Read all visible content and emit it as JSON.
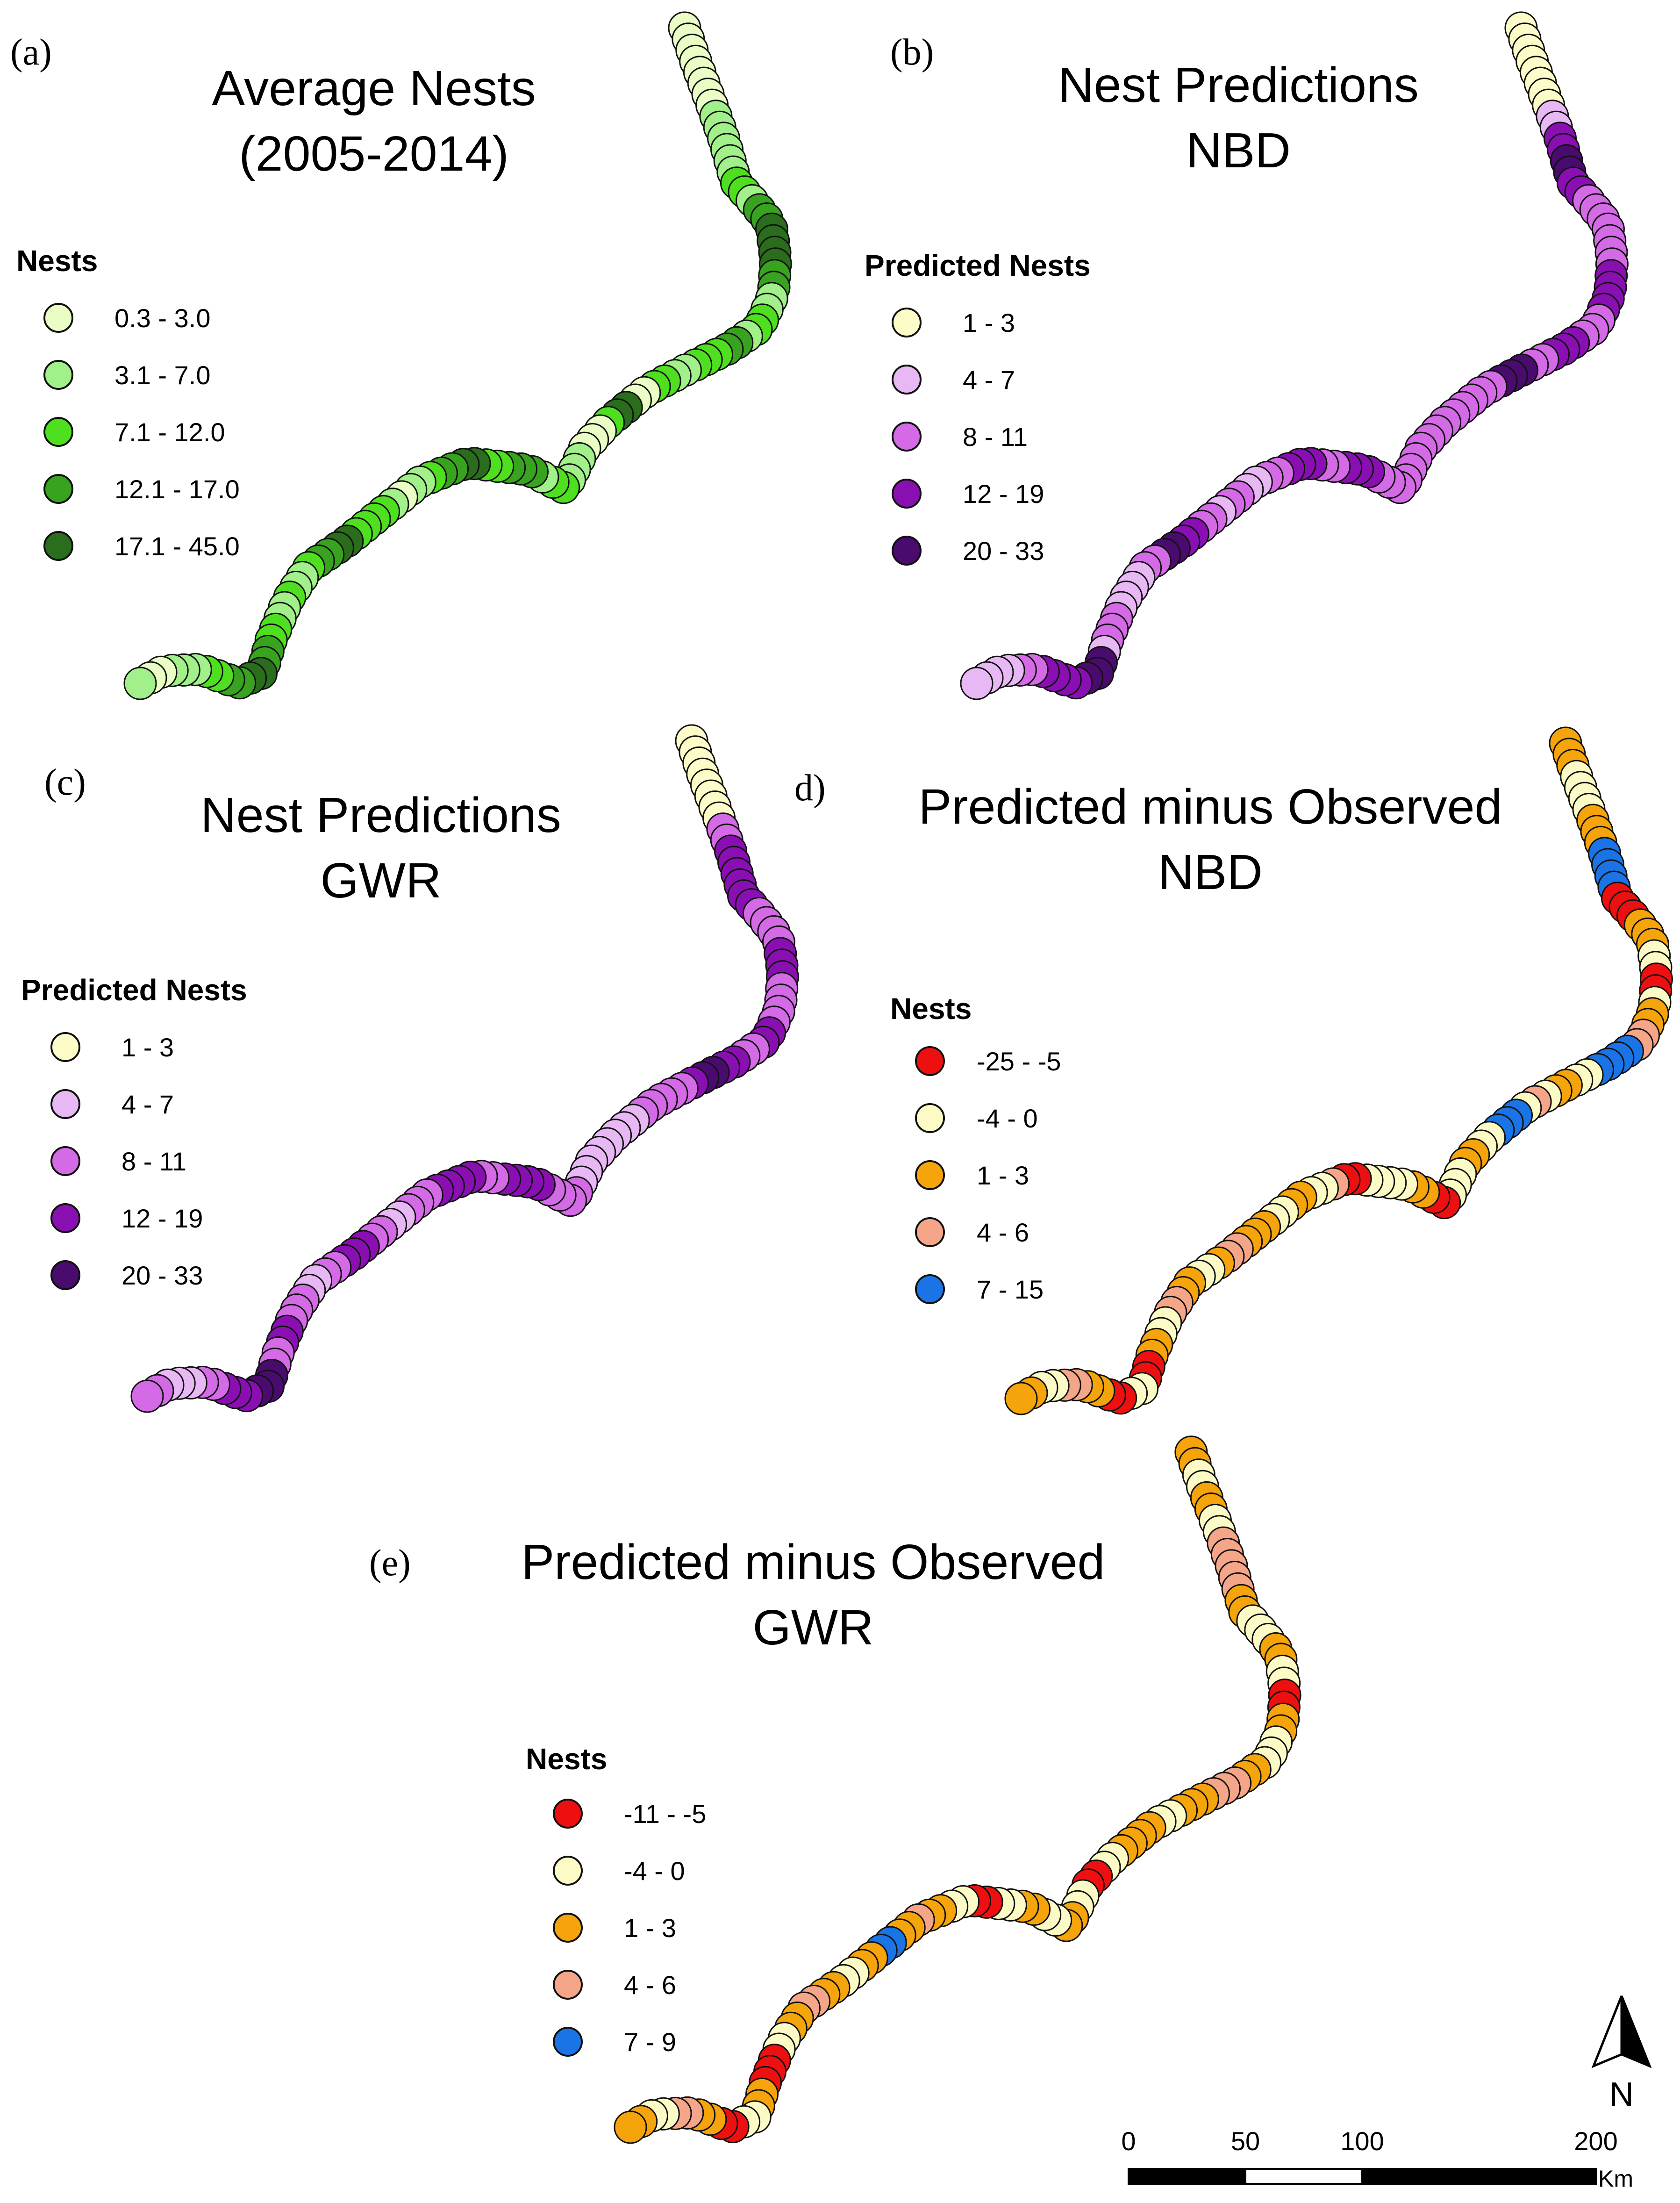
{
  "colors": {
    "marker_stroke": "#111111",
    "green_ramp": [
      "#eafdc5",
      "#a2f08a",
      "#4ee01f",
      "#38a31f",
      "#2a6d1c"
    ],
    "purple_ramp": [
      "#fdfbc7",
      "#e8b8f4",
      "#d56ae6",
      "#8a0fb3",
      "#4a0b6e"
    ],
    "diff_ramp": [
      "#ee1010",
      "#fdfbc5",
      "#f5a40c",
      "#f5a689",
      "#1a74e6"
    ]
  },
  "panels": [
    {
      "id": "a",
      "letter": "(a)",
      "title_line1": "Average Nests",
      "title_line2": "(2005-2014)",
      "legend_title": "Nests",
      "ramp": "green_ramp",
      "legend": [
        "0.3 - 3.0",
        "3.1 - 7.0",
        "7.1 - 12.0",
        "12.1 - 17.0",
        "17.1 - 45.0"
      ],
      "site_classes": [
        0,
        0,
        0,
        0,
        0,
        0,
        0,
        0,
        1,
        1,
        1,
        1,
        1,
        1,
        2,
        2,
        1,
        3,
        3,
        4,
        4,
        4,
        4,
        3,
        3,
        1,
        1,
        2,
        2,
        1,
        3,
        3,
        2,
        2,
        2,
        1,
        1,
        2,
        2,
        0,
        0,
        4,
        4,
        2,
        0,
        0,
        0,
        1,
        1,
        1,
        2,
        2,
        1,
        3,
        3,
        3,
        2,
        2,
        4,
        4,
        3,
        3,
        2,
        1,
        1,
        0,
        1,
        2,
        2,
        2,
        2,
        4,
        4,
        3,
        3,
        2,
        1,
        1,
        2,
        1,
        1,
        2,
        2,
        3,
        3,
        4,
        4,
        3,
        3,
        2,
        2,
        1,
        1,
        1,
        0,
        0,
        1
      ]
    },
    {
      "id": "b",
      "letter": "(b)",
      "title_line1": "Nest Predictions",
      "title_line2": "NBD",
      "legend_title": "Predicted Nests",
      "ramp": "purple_ramp",
      "legend": [
        "1 - 3",
        "4 - 7",
        "8 - 11",
        "12 - 19",
        "20 - 33"
      ],
      "site_classes": [
        0,
        0,
        0,
        0,
        0,
        0,
        0,
        0,
        1,
        1,
        3,
        3,
        4,
        4,
        3,
        3,
        2,
        2,
        2,
        2,
        2,
        2,
        2,
        3,
        3,
        3,
        3,
        2,
        2,
        2,
        3,
        3,
        3,
        2,
        2,
        4,
        4,
        4,
        2,
        2,
        2,
        2,
        2,
        2,
        2,
        2,
        2,
        2,
        2,
        2,
        2,
        2,
        2,
        3,
        3,
        3,
        2,
        2,
        3,
        3,
        3,
        2,
        2,
        1,
        1,
        2,
        2,
        1,
        2,
        2,
        3,
        3,
        4,
        4,
        2,
        2,
        1,
        1,
        1,
        1,
        2,
        2,
        2,
        1,
        4,
        4,
        4,
        3,
        3,
        3,
        3,
        2,
        2,
        1,
        1,
        1,
        1
      ]
    },
    {
      "id": "c",
      "letter": "(c)",
      "title_line1": "Nest Predictions",
      "title_line2": "GWR",
      "legend_title": "Predicted Nests",
      "ramp": "purple_ramp",
      "legend": [
        "1 - 3",
        "4 - 7",
        "8 - 11",
        "12 - 19",
        "20 - 33"
      ],
      "site_classes": [
        0,
        0,
        0,
        0,
        0,
        0,
        0,
        0,
        2,
        2,
        3,
        3,
        3,
        3,
        3,
        3,
        2,
        2,
        2,
        2,
        3,
        3,
        3,
        2,
        2,
        2,
        2,
        3,
        3,
        2,
        2,
        3,
        3,
        4,
        4,
        3,
        2,
        2,
        2,
        2,
        2,
        1,
        1,
        1,
        1,
        1,
        1,
        1,
        1,
        2,
        2,
        2,
        2,
        3,
        3,
        3,
        3,
        2,
        2,
        3,
        3,
        3,
        3,
        2,
        2,
        2,
        1,
        1,
        2,
        2,
        3,
        3,
        3,
        2,
        2,
        1,
        1,
        2,
        2,
        2,
        3,
        3,
        2,
        2,
        4,
        4,
        4,
        3,
        3,
        3,
        2,
        2,
        1,
        1,
        1,
        2,
        2
      ]
    },
    {
      "id": "d",
      "letter": "d)",
      "title_line1": "Predicted minus Observed",
      "title_line2": "NBD",
      "legend_title": "Nests",
      "ramp": "diff_ramp",
      "legend": [
        "-25 - -5",
        "-4 - 0",
        "1 - 3",
        "4 - 6",
        "7 - 15"
      ],
      "site_classes": [
        2,
        2,
        2,
        1,
        1,
        1,
        1,
        2,
        2,
        2,
        4,
        4,
        4,
        4,
        0,
        0,
        0,
        2,
        2,
        2,
        1,
        1,
        0,
        0,
        1,
        2,
        2,
        3,
        3,
        4,
        4,
        4,
        4,
        1,
        1,
        2,
        2,
        1,
        3,
        1,
        4,
        4,
        4,
        1,
        1,
        2,
        2,
        1,
        1,
        1,
        0,
        0,
        2,
        2,
        1,
        1,
        1,
        1,
        0,
        0,
        3,
        1,
        1,
        2,
        2,
        1,
        1,
        2,
        2,
        2,
        3,
        3,
        2,
        1,
        1,
        2,
        2,
        3,
        3,
        1,
        1,
        2,
        2,
        0,
        0,
        1,
        1,
        0,
        0,
        2,
        2,
        3,
        3,
        1,
        1,
        2,
        2
      ]
    },
    {
      "id": "e",
      "letter": "(e)",
      "title_line1": "Predicted minus Observed",
      "title_line2": "GWR",
      "legend_title": "Nests",
      "ramp": "diff_ramp",
      "legend": [
        "-11 - -5",
        "-4 - 0",
        "1 - 3",
        "4 - 6",
        "7 - 9"
      ],
      "site_classes": [
        2,
        2,
        1,
        1,
        2,
        2,
        1,
        1,
        3,
        3,
        3,
        3,
        3,
        2,
        2,
        1,
        1,
        1,
        2,
        2,
        1,
        1,
        0,
        0,
        2,
        2,
        1,
        1,
        1,
        2,
        2,
        3,
        3,
        3,
        2,
        2,
        2,
        1,
        1,
        2,
        2,
        2,
        2,
        1,
        1,
        0,
        0,
        1,
        1,
        2,
        2,
        1,
        1,
        2,
        2,
        1,
        1,
        0,
        0,
        1,
        1,
        2,
        2,
        3,
        2,
        2,
        4,
        4,
        2,
        2,
        1,
        1,
        2,
        2,
        3,
        3,
        2,
        2,
        1,
        1,
        0,
        0,
        0,
        2,
        2,
        1,
        1,
        0,
        0,
        2,
        2,
        3,
        3,
        1,
        1,
        2,
        2
      ]
    }
  ],
  "scalebar": {
    "ticks": [
      "0",
      "50",
      "100",
      "200"
    ],
    "unit": "Km"
  },
  "north_arrow": {
    "label": "N"
  }
}
